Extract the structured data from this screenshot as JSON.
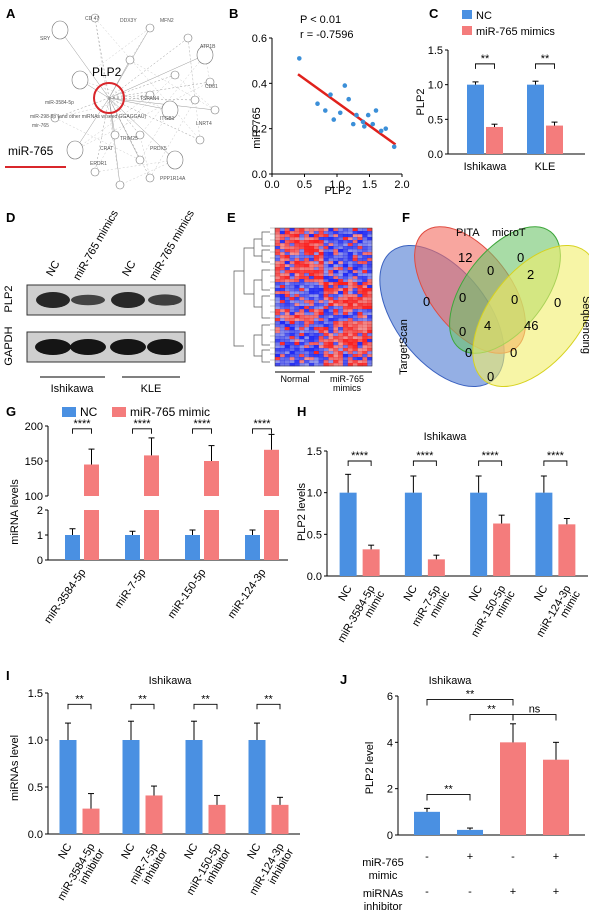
{
  "panel_letters": [
    "A",
    "B",
    "C",
    "D",
    "E",
    "F",
    "G",
    "H",
    "I",
    "J"
  ],
  "network": {
    "hub_label": "PLP2",
    "mir_label": "miR-765",
    "hub_color": "#d9262b",
    "small_labels": [
      "CD 47",
      "DDX3Y",
      "miR-3584-5p",
      "MFN2",
      "miR-298-5p (and other miRNAs w/seed GGAGGAU)",
      "ATP1B",
      "LNRT4",
      "PRDX5",
      "ERDR1",
      "ITGB1",
      "CD81",
      "mir-765",
      "PPP1R14A",
      "SRY",
      "TRIM25",
      "PLP2",
      "TSPAN4",
      "CRAT"
    ]
  },
  "colors": {
    "nc": "#4a90e2",
    "mir": "#f47c7c",
    "red_line": "#e0211c",
    "point": "#3b8fd8"
  },
  "chart_data": [
    {
      "panel": "B",
      "type": "scatter",
      "xlabel": "PLP2",
      "ylabel": "miR-765",
      "xlim": [
        0,
        2.0
      ],
      "ylim": [
        0,
        0.6
      ],
      "xticks": [
        "0.0",
        "0.5",
        "1.0",
        "1.5",
        "2.0"
      ],
      "yticks": [
        "0.0",
        "0.2",
        "0.4",
        "0.6"
      ],
      "stat_p": "P < 0.01",
      "stat_r": "r = -0.7596",
      "points": [
        [
          0.42,
          0.51
        ],
        [
          0.7,
          0.31
        ],
        [
          0.82,
          0.28
        ],
        [
          0.9,
          0.35
        ],
        [
          0.95,
          0.24
        ],
        [
          1.05,
          0.27
        ],
        [
          1.12,
          0.39
        ],
        [
          1.18,
          0.33
        ],
        [
          1.25,
          0.22
        ],
        [
          1.3,
          0.26
        ],
        [
          1.4,
          0.23
        ],
        [
          1.42,
          0.21
        ],
        [
          1.48,
          0.26
        ],
        [
          1.55,
          0.22
        ],
        [
          1.6,
          0.28
        ],
        [
          1.68,
          0.19
        ],
        [
          1.75,
          0.2
        ],
        [
          1.88,
          0.12
        ]
      ],
      "fit": [
        [
          0.4,
          0.44
        ],
        [
          1.9,
          0.13
        ]
      ]
    },
    {
      "panel": "C",
      "type": "bar",
      "ylabel": "PLP2",
      "ylim": [
        0,
        1.5
      ],
      "yticks": [
        "0.0",
        "0.5",
        "1.0",
        "1.5"
      ],
      "legend": [
        "NC",
        "miR-765 mimics"
      ],
      "categories": [
        "Ishikawa",
        "KLE"
      ],
      "series": [
        {
          "name": "NC",
          "values": [
            1.0,
            1.0
          ],
          "err": [
            0.04,
            0.05
          ]
        },
        {
          "name": "miR-765 mimics",
          "values": [
            0.39,
            0.41
          ],
          "err": [
            0.04,
            0.05
          ]
        }
      ],
      "sig": [
        "**",
        "**"
      ]
    },
    {
      "panel": "G",
      "type": "bar",
      "ylabel": "miRNA levels",
      "yticks_upper": [
        "100",
        "150",
        "200"
      ],
      "yticks_lower": [
        "0",
        "1",
        "2"
      ],
      "legend": [
        "NC",
        "miR-765 mimic"
      ],
      "categories": [
        "miR-3584-5p",
        "miR-7-5p",
        "miR-150-5p",
        "miR-124-3p"
      ],
      "series": [
        {
          "name": "NC",
          "values": [
            1,
            1,
            1,
            1
          ],
          "err": [
            0.25,
            0.15,
            0.2,
            0.2
          ]
        },
        {
          "name": "miR-765 mimic",
          "values": [
            145,
            158,
            150,
            166
          ],
          "err": [
            22,
            25,
            22,
            22
          ]
        }
      ],
      "sig": [
        "****",
        "****",
        "****",
        "****"
      ]
    },
    {
      "panel": "H",
      "type": "bar",
      "title": "Ishikawa",
      "ylabel": "PLP2 levels",
      "ylim": [
        0,
        1.5
      ],
      "yticks": [
        "0.0",
        "0.5",
        "1.0",
        "1.5"
      ],
      "categories": [
        "NC",
        "miR-3584-5p mimic",
        "NC",
        "miR-7-5p mimic",
        "NC",
        "miR-150-5p mimic",
        "NC",
        "miR-124-3p mimic"
      ],
      "values": [
        1.0,
        0.32,
        1.0,
        0.2,
        1.0,
        0.63,
        1.0,
        0.62
      ],
      "err": [
        0.22,
        0.05,
        0.2,
        0.05,
        0.2,
        0.1,
        0.2,
        0.07
      ],
      "sig": [
        "****",
        "****",
        "****",
        "****"
      ]
    },
    {
      "panel": "I",
      "type": "bar",
      "title": "Ishikawa",
      "ylabel": "miRNAs level",
      "ylim": [
        0,
        1.5
      ],
      "yticks": [
        "0.0",
        "0.5",
        "1.0",
        "1.5"
      ],
      "categories": [
        "NC",
        "miR-3584-5p inhibitor",
        "NC",
        "miR-7-5p inhibitor",
        "NC",
        "miR-150-5p inhibitor",
        "NC",
        "miR-124-3p inhibitor"
      ],
      "values": [
        1.0,
        0.27,
        1.0,
        0.41,
        1.0,
        0.31,
        1.0,
        0.31
      ],
      "err": [
        0.18,
        0.16,
        0.2,
        0.1,
        0.2,
        0.1,
        0.18,
        0.08
      ],
      "sig": [
        "**",
        "**",
        "**",
        "**"
      ]
    },
    {
      "panel": "J",
      "type": "bar",
      "title": "Ishikawa",
      "ylabel": "PLP2 level",
      "ylim": [
        0,
        6
      ],
      "yticks": [
        "0",
        "2",
        "4",
        "6"
      ],
      "values": [
        1.0,
        0.22,
        4.0,
        3.25
      ],
      "err": [
        0.15,
        0.08,
        0.8,
        0.75
      ],
      "row1_label": "miR-765 mimic",
      "row1": [
        "-",
        "+",
        "-",
        "+"
      ],
      "row2_label": "miRNAs inhibitor",
      "row2": [
        "-",
        "-",
        "+",
        "+"
      ],
      "sig": [
        "**",
        "**",
        "**",
        "ns"
      ]
    }
  ],
  "western": {
    "cols": [
      "NC",
      "miR-765 mimics",
      "NC",
      "miR-765 mimics"
    ],
    "rows": [
      "PLP2",
      "GAPDH"
    ],
    "cells": [
      "Ishikawa",
      "KLE"
    ]
  },
  "heatmap": {
    "groups": [
      "Normal",
      "miR-765 mimics"
    ]
  },
  "venn": {
    "sets": [
      "PITA",
      "microT",
      "TargetScan",
      "Sequencing"
    ],
    "numbers": [
      "12",
      "0",
      "0",
      "2",
      "0",
      "0",
      "0",
      "4",
      "46",
      "0",
      "0",
      "0",
      "0",
      "0"
    ]
  }
}
